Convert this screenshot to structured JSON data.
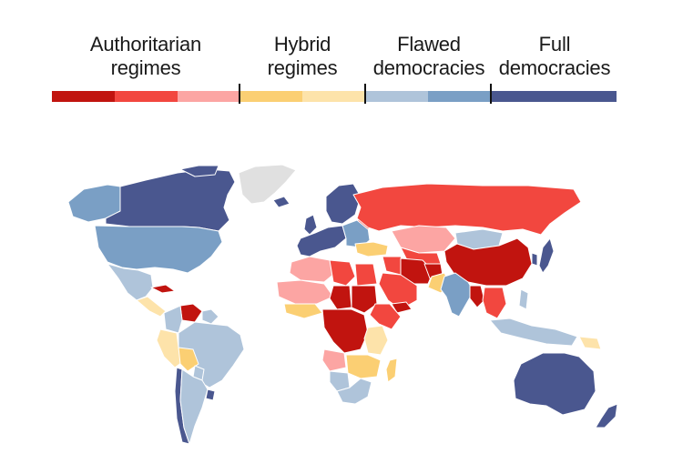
{
  "legend": {
    "groups": [
      {
        "label": "Authoritarian\nregimes"
      },
      {
        "label": "Hybrid\nregimes"
      },
      {
        "label": "Flawed\ndemocracies"
      },
      {
        "label": "Full\ndemocracies"
      }
    ],
    "swatches": [
      {
        "color": "#c1140f"
      },
      {
        "color": "#f2473f"
      },
      {
        "color": "#fca5a3"
      },
      {
        "color": "#fbcf73"
      },
      {
        "color": "#fde3aa"
      },
      {
        "color": "#afc4da"
      },
      {
        "color": "#7a9fc5"
      },
      {
        "color": "#4a578f"
      }
    ]
  },
  "map": {
    "no_data_color": "#e0e0e0",
    "border_color": "#ffffff"
  }
}
